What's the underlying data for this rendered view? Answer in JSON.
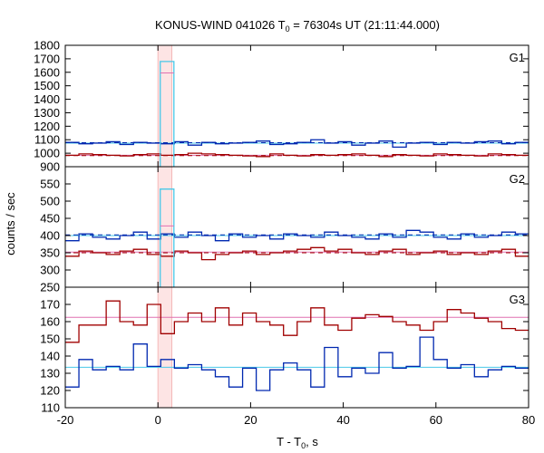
{
  "title": {
    "prefix": "KONUS-WIND 041026 T",
    "subscript": "0",
    "suffix": " = 76304s UT (21:11:44.000)"
  },
  "xlabel": {
    "prefix": "T - T",
    "subscript": "0",
    "suffix": ", s"
  },
  "ylabel": "counts / sec",
  "colors": {
    "red": "#a00000",
    "blue": "#0028b0",
    "cyan": "#48c8e8",
    "pink": "#e070b0",
    "highlight": "#fde4e4",
    "highlight_edge": "#f4b8b8"
  },
  "chart_data": {
    "type": "line",
    "subtype": "stepped multi-panel light curves",
    "xlim": [
      -20,
      80
    ],
    "x_ticks": [
      -20,
      0,
      20,
      40,
      60,
      80
    ],
    "highlight_region": [
      0,
      3
    ],
    "panels": [
      {
        "label": "G1",
        "ylim": [
          900,
          1800
        ],
        "y_ticks": [
          900,
          1000,
          1100,
          1200,
          1300,
          1400,
          1500,
          1600,
          1700,
          1800
        ],
        "series": [
          {
            "color_key": "blue",
            "x_start": -20,
            "bin": 2.944,
            "values": [
              1080,
              1070,
              1075,
              1085,
              1065,
              1080,
              1075,
              1070,
              1085,
              1060,
              1080,
              1070,
              1075,
              1080,
              1090,
              1065,
              1070,
              1080,
              1100,
              1075,
              1085,
              1060,
              1075,
              1090,
              1045,
              1075,
              1080,
              1065,
              1080,
              1075,
              1085,
              1090,
              1070,
              1080,
              1085,
              1060,
              1075,
              1110,
              1060,
              1075,
              1055
            ]
          },
          {
            "color_key": "red",
            "x_start": -20,
            "bin": 2.944,
            "values": [
              985,
              995,
              990,
              985,
              980,
              990,
              995,
              985,
              990,
              1000,
              995,
              990,
              985,
              980,
              975,
              995,
              985,
              980,
              990,
              985,
              990,
              995,
              985,
              975,
              990,
              985,
              980,
              995,
              990,
              985,
              980,
              995,
              990,
              985,
              1000,
              990,
              985,
              995,
              1000,
              1005,
              995
            ]
          },
          {
            "color_key": "cyan",
            "x_start": 0.5,
            "bin": 2.944,
            "values": [
              1680
            ]
          }
        ],
        "means": [
          {
            "color_key": "cyan",
            "value": 1075,
            "style": "solid"
          },
          {
            "color_key": "blue",
            "value": 1078,
            "style": "dashed"
          },
          {
            "color_key": "pink",
            "value": 985,
            "style": "solid"
          },
          {
            "color_key": "red",
            "value": 982,
            "style": "dashed"
          }
        ],
        "peak_marker": {
          "color_key": "pink",
          "x0": 0.5,
          "x1": 3.44,
          "value": 1595
        }
      },
      {
        "label": "G2",
        "ylim": [
          250,
          600
        ],
        "y_ticks": [
          250,
          300,
          350,
          400,
          450,
          500,
          550
        ],
        "series": [
          {
            "color_key": "blue",
            "x_start": -20,
            "bin": 2.944,
            "values": [
              385,
              405,
              395,
              390,
              400,
              410,
              390,
              405,
              395,
              410,
              400,
              385,
              405,
              395,
              400,
              390,
              405,
              400,
              395,
              410,
              400,
              395,
              390,
              405,
              395,
              415,
              410,
              395,
              390,
              405,
              395,
              400,
              410,
              405,
              395,
              420,
              415,
              430,
              410,
              400,
              405
            ]
          },
          {
            "color_key": "red",
            "x_start": -20,
            "bin": 2.944,
            "values": [
              340,
              355,
              350,
              345,
              355,
              360,
              345,
              340,
              355,
              350,
              330,
              345,
              350,
              355,
              345,
              350,
              355,
              360,
              365,
              355,
              360,
              350,
              345,
              355,
              360,
              345,
              350,
              355,
              345,
              350,
              345,
              355,
              360,
              340,
              370,
              355,
              350,
              355,
              360,
              355,
              360
            ]
          },
          {
            "color_key": "cyan",
            "x_start": 0.5,
            "bin": 2.944,
            "values": [
              535
            ]
          }
        ],
        "means": [
          {
            "color_key": "cyan",
            "value": 400,
            "style": "solid"
          },
          {
            "color_key": "blue",
            "value": 402,
            "style": "dashed"
          },
          {
            "color_key": "pink",
            "value": 352,
            "style": "solid"
          },
          {
            "color_key": "red",
            "value": 350,
            "style": "dashed"
          }
        ],
        "peak_marker": {
          "color_key": "pink",
          "x0": 0.5,
          "x1": 3.44,
          "value": 428
        }
      },
      {
        "label": "G3",
        "ylim": [
          110,
          180
        ],
        "y_ticks": [
          110,
          120,
          130,
          140,
          150,
          160,
          170
        ],
        "series": [
          {
            "color_key": "red",
            "x_start": -20,
            "bin": 2.944,
            "values": [
              148,
              158,
              158,
              172,
              160,
              158,
              170,
              153,
              160,
              165,
              160,
              168,
              158,
              165,
              160,
              158,
              152,
              160,
              168,
              158,
              155,
              162,
              164,
              163,
              160,
              158,
              155,
              160,
              167,
              165,
              162,
              160,
              156,
              155,
              160,
              168,
              164,
              158,
              166,
              162,
              165
            ]
          },
          {
            "color_key": "blue",
            "x_start": -20,
            "bin": 2.944,
            "values": [
              122,
              138,
              132,
              134,
              132,
              147,
              134,
              138,
              133,
              135,
              132,
              128,
              122,
              133,
              120,
              132,
              136,
              132,
              122,
              145,
              128,
              133,
              130,
              142,
              133,
              134,
              151,
              138,
              133,
              135,
              128,
              132,
              134,
              133,
              136,
              133,
              134,
              128,
              135,
              133,
              132
            ]
          }
        ],
        "means": [
          {
            "color_key": "pink",
            "value": 162.5,
            "style": "solid"
          },
          {
            "color_key": "cyan",
            "value": 133.5,
            "style": "solid"
          }
        ]
      }
    ]
  }
}
